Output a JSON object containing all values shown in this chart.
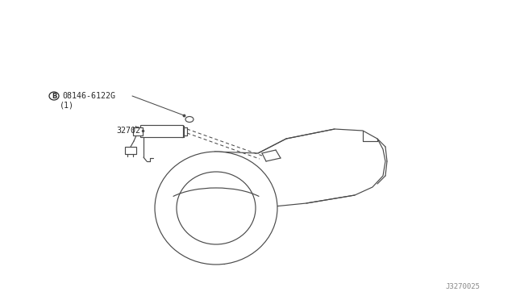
{
  "bg_color": "#ffffff",
  "line_color": "#4a4a4a",
  "text_color": "#2a2a2a",
  "diagram_id": "J3270025",
  "fig_width": 6.4,
  "fig_height": 3.72,
  "dpi": 100
}
